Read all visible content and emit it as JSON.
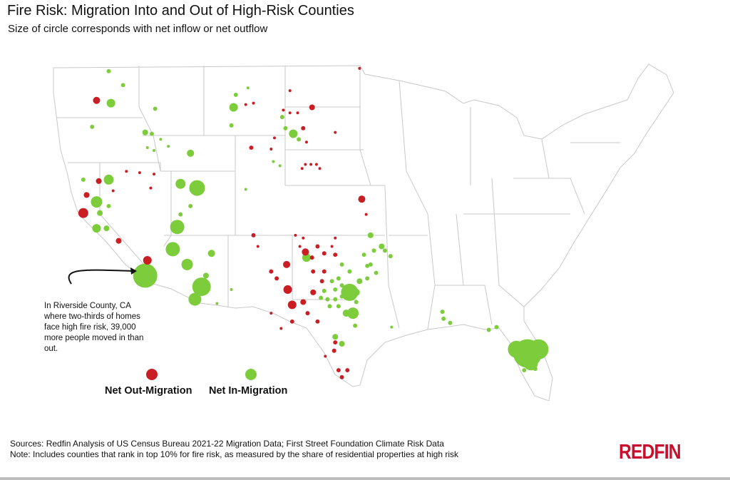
{
  "title": "Fire Risk: Migration Into and Out of High-Risk Counties",
  "subtitle": "Size of circle corresponds with net inflow or net outflow",
  "annotation": "In Riverside County, CA where two-thirds of homes face high fire risk, 39,000 more people moved in than out.",
  "legend": {
    "out_label": "Net Out-Migration",
    "in_label": "Net In-Migration"
  },
  "footer": {
    "sources": "Sources: Redfin Analysis of US Census Bureau 2021-22 Migration Data; First Street Foundation Climate Risk Data",
    "note": "Note: Includes counties that rank in top 10% for fire risk, as measured by the share of residential properties at high risk"
  },
  "logo_text": "REDFIN",
  "colors": {
    "out": "#c81e24",
    "in": "#7ccc3c",
    "border": "#c8c8c8",
    "brand": "#c8102e"
  },
  "chart_data": {
    "type": "scatter",
    "description_units": "lon, lat, net migration (people); sign indicated by group",
    "in_migration": [
      [
        -119.7,
        48.6,
        1200
      ],
      [
        -118.4,
        47.6,
        1200
      ],
      [
        -119.5,
        46.3,
        4900
      ],
      [
        -121.2,
        44.6,
        1200
      ],
      [
        -115.5,
        45.9,
        1200
      ],
      [
        -116.4,
        44.2,
        2200
      ],
      [
        -115.8,
        44.1,
        1200
      ],
      [
        -115.0,
        43.7,
        540
      ],
      [
        -114.3,
        43.2,
        540
      ],
      [
        -116.2,
        43.1,
        540
      ],
      [
        -115.6,
        42.9,
        540
      ],
      [
        -112.3,
        42.7,
        3400
      ],
      [
        -108.4,
        46.0,
        4900
      ],
      [
        -108.2,
        46.9,
        1200
      ],
      [
        -107.1,
        47.4,
        540
      ],
      [
        -108.6,
        44.7,
        1200
      ],
      [
        -104.0,
        45.3,
        1200
      ],
      [
        -103.7,
        44.5,
        1200
      ],
      [
        -103.0,
        44.1,
        4900
      ],
      [
        -102.5,
        43.7,
        1200
      ],
      [
        -119.7,
        40.8,
        6600
      ],
      [
        -122.0,
        40.8,
        1200
      ],
      [
        -120.8,
        39.2,
        8700
      ],
      [
        -120.5,
        38.4,
        2200
      ],
      [
        -119.9,
        37.3,
        2200
      ],
      [
        -120.8,
        37.3,
        4900
      ],
      [
        -119.7,
        38.9,
        1200
      ],
      [
        -113.2,
        40.5,
        6600
      ],
      [
        -111.7,
        40.2,
        16400
      ],
      [
        -112.3,
        38.9,
        1200
      ],
      [
        -113.5,
        37.4,
        13500
      ],
      [
        -113.9,
        35.8,
        13500
      ],
      [
        -112.6,
        34.7,
        8700
      ],
      [
        -110.4,
        35.5,
        3400
      ],
      [
        -110.9,
        33.9,
        2200
      ],
      [
        -111.3,
        33.1,
        22800
      ],
      [
        -111.9,
        32.2,
        11000
      ],
      [
        -109.9,
        31.9,
        540
      ],
      [
        -116.4,
        33.9,
        39000
      ],
      [
        -113.2,
        38.3,
        1200
      ],
      [
        -108.6,
        32.9,
        540
      ],
      [
        -104.8,
        42.1,
        540
      ],
      [
        -107.3,
        40.1,
        540
      ],
      [
        -104.2,
        41.8,
        540
      ],
      [
        -97.9,
        32.7,
        19500
      ],
      [
        -97.6,
        31.2,
        8700
      ],
      [
        -97.0,
        33.5,
        2200
      ],
      [
        -96.3,
        33.7,
        1200
      ],
      [
        -96.0,
        34.7,
        1200
      ],
      [
        -96.0,
        36.8,
        2200
      ],
      [
        -95.0,
        36.0,
        2200
      ],
      [
        -94.7,
        35.7,
        1200
      ],
      [
        -95.7,
        35.7,
        1200
      ],
      [
        -96.6,
        35.4,
        1200
      ],
      [
        -96.3,
        34.6,
        1200
      ],
      [
        -95.5,
        34.1,
        1200
      ],
      [
        -99.2,
        29.5,
        2200
      ],
      [
        -98.6,
        29.0,
        2200
      ],
      [
        -98.2,
        31.2,
        3400
      ],
      [
        -97.4,
        30.3,
        1200
      ],
      [
        -99.2,
        32.2,
        1200
      ],
      [
        -99.9,
        32.2,
        1200
      ],
      [
        -100.5,
        32.3,
        1200
      ],
      [
        -100.2,
        32.8,
        1200
      ],
      [
        -99.2,
        32.9,
        1200
      ],
      [
        -98.6,
        33.2,
        1200
      ],
      [
        -97.9,
        34.2,
        1200
      ],
      [
        -99.5,
        33.5,
        1200
      ],
      [
        -98.9,
        33.7,
        1200
      ],
      [
        -99.7,
        31.7,
        1200
      ],
      [
        -98.9,
        31.7,
        1200
      ],
      [
        -98.6,
        32.4,
        1200
      ],
      [
        -97.3,
        32.0,
        1200
      ],
      [
        -101.8,
        35.2,
        4900
      ],
      [
        -98.6,
        34.7,
        1200
      ],
      [
        -97.3,
        32.7,
        3400
      ],
      [
        -89.5,
        31.3,
        1200
      ],
      [
        -89.4,
        30.8,
        1200
      ],
      [
        -88.8,
        30.5,
        1200
      ],
      [
        -85.3,
        30.0,
        1200
      ],
      [
        -84.6,
        30.2,
        1200
      ],
      [
        -81.8,
        28.3,
        54000
      ],
      [
        -82.8,
        28.6,
        19500
      ],
      [
        -80.8,
        28.6,
        26500
      ],
      [
        -81.5,
        27.6,
        13500
      ],
      [
        -81.1,
        27.2,
        1200
      ],
      [
        -82.1,
        27.1,
        1200
      ],
      [
        -94.1,
        30.2,
        540
      ],
      [
        -94.2,
        35.3,
        1200
      ]
    ],
    "out_migration": [
      [
        -120.8,
        46.5,
        3400
      ],
      [
        -121.7,
        39.7,
        2200
      ],
      [
        -122.0,
        38.4,
        6600
      ],
      [
        -120.6,
        40.7,
        2200
      ],
      [
        -119.3,
        40.0,
        540
      ],
      [
        -118.1,
        41.4,
        540
      ],
      [
        -118.8,
        36.4,
        2200
      ],
      [
        -116.2,
        35.0,
        4900
      ],
      [
        -116.9,
        41.3,
        540
      ],
      [
        -115.6,
        41.2,
        540
      ],
      [
        -115.9,
        40.2,
        540
      ],
      [
        -106.6,
        46.3,
        540
      ],
      [
        -107.3,
        46.2,
        540
      ],
      [
        -106.8,
        43.1,
        1200
      ],
      [
        -105.0,
        43.0,
        540
      ],
      [
        -103.9,
        45.8,
        540
      ],
      [
        -103.3,
        45.6,
        540
      ],
      [
        -102.6,
        45.6,
        540
      ],
      [
        -101.3,
        46.0,
        2200
      ],
      [
        -103.3,
        47.2,
        540
      ],
      [
        -102.1,
        44.5,
        1200
      ],
      [
        -99.2,
        44.2,
        540
      ],
      [
        -101.8,
        43.5,
        540
      ],
      [
        -104.7,
        43.8,
        540
      ],
      [
        -97.0,
        48.8,
        540
      ],
      [
        -101.9,
        41.9,
        540
      ],
      [
        -101.4,
        41.9,
        540
      ],
      [
        -100.9,
        41.9,
        540
      ],
      [
        -102.2,
        41.6,
        540
      ],
      [
        -100.6,
        41.6,
        540
      ],
      [
        -96.8,
        39.4,
        3400
      ],
      [
        -96.4,
        38.3,
        540
      ],
      [
        -101.9,
        35.6,
        3400
      ],
      [
        -102.4,
        36.0,
        540
      ],
      [
        -103.6,
        34.7,
        3400
      ],
      [
        -103.5,
        32.9,
        4900
      ],
      [
        -102.1,
        32.0,
        2200
      ],
      [
        -103.1,
        31.8,
        4900
      ],
      [
        -101.2,
        32.7,
        2200
      ],
      [
        -100.4,
        33.5,
        1200
      ],
      [
        -100.2,
        34.2,
        1200
      ],
      [
        -101.2,
        34.2,
        1200
      ],
      [
        -101.3,
        35.2,
        1200
      ],
      [
        -100.2,
        35.5,
        1200
      ],
      [
        -99.2,
        35.4,
        1200
      ],
      [
        -100.8,
        36.0,
        1200
      ],
      [
        -106.6,
        36.8,
        1200
      ],
      [
        -106.2,
        36.0,
        540
      ],
      [
        -105.0,
        34.2,
        1200
      ],
      [
        -104.5,
        33.7,
        1200
      ],
      [
        -104.1,
        30.1,
        540
      ],
      [
        -103.1,
        30.6,
        1200
      ],
      [
        -101.7,
        31.2,
        1200
      ],
      [
        -100.8,
        30.6,
        1200
      ],
      [
        -99.2,
        29.1,
        1200
      ],
      [
        -99.3,
        28.5,
        1200
      ],
      [
        -98.9,
        27.1,
        1200
      ],
      [
        -98.1,
        27.1,
        1200
      ],
      [
        -98.6,
        26.6,
        1200
      ],
      [
        -100.1,
        28.1,
        540
      ],
      [
        -105.0,
        31.2,
        540
      ],
      [
        -102.8,
        36.8,
        540
      ],
      [
        -99.5,
        36.0,
        540
      ],
      [
        -99.2,
        36.6,
        540
      ],
      [
        -102.1,
        36.6,
        540
      ]
    ],
    "legend_placement": "bottom-left"
  }
}
